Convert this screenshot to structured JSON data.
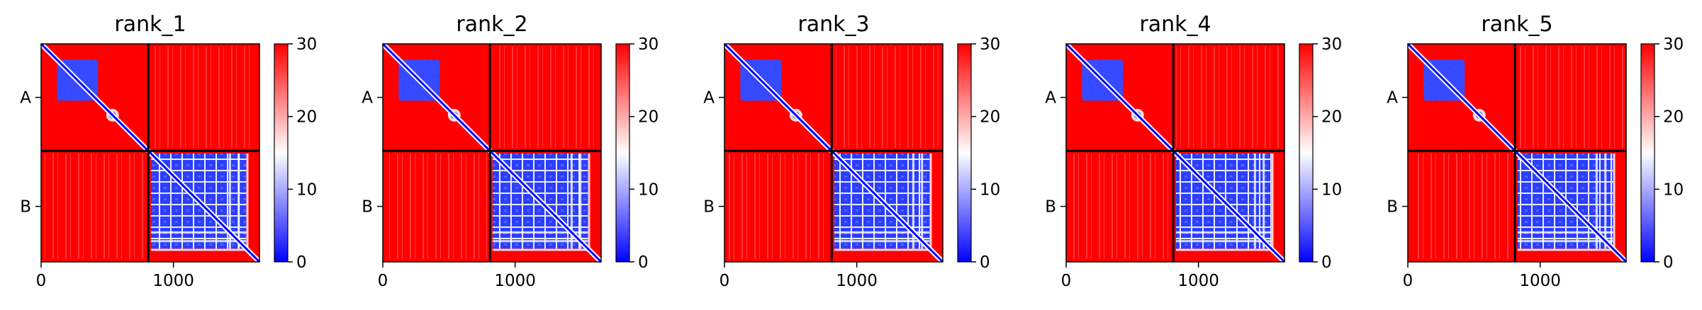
{
  "chart_data": {
    "type": "heatmap",
    "panels": [
      {
        "title": "rank_1"
      },
      {
        "title": "rank_2"
      },
      {
        "title": "rank_3"
      },
      {
        "title": "rank_4"
      },
      {
        "title": "rank_5"
      }
    ],
    "x_ticks": [
      {
        "value": 0,
        "label": "0"
      },
      {
        "value": 1000,
        "label": "1000"
      }
    ],
    "y_ticks": [
      {
        "label": "A"
      },
      {
        "label": "B"
      }
    ],
    "x_range": [
      0,
      1650
    ],
    "chain_boundary": 810,
    "colorbar": {
      "range": [
        0,
        30
      ],
      "colors": [
        "#0000ff",
        "#ffffff",
        "#ff0000"
      ],
      "ticks": [
        {
          "value": 0,
          "label": "0"
        },
        {
          "value": 10,
          "label": "10"
        },
        {
          "value": 20,
          "label": "20"
        },
        {
          "value": 30,
          "label": "30"
        }
      ]
    },
    "grid": false
  }
}
